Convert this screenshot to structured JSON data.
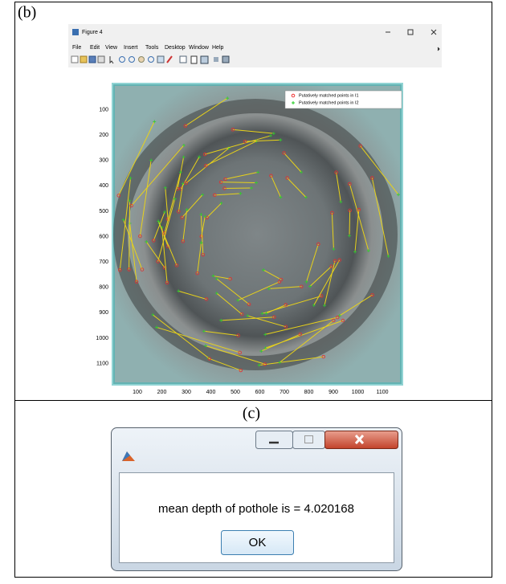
{
  "panel_b": {
    "label": "(b)",
    "window": {
      "title": "Figure 4",
      "menu": [
        "File",
        "Edit",
        "View",
        "Insert",
        "Tools",
        "Desktop",
        "Window",
        "Help"
      ],
      "axes": {
        "xticks": [
          100,
          200,
          300,
          400,
          500,
          600,
          700,
          800,
          900,
          1000,
          1100
        ],
        "yticks": [
          100,
          200,
          300,
          400,
          500,
          600,
          700,
          800,
          900,
          1000,
          1100
        ]
      },
      "legend": [
        "Putatively matched points in I1",
        "Putatively matched points in I2"
      ]
    }
  },
  "panel_c": {
    "label": "(c)",
    "dialog": {
      "message": "mean depth of pothole is = 4.020168",
      "button": "OK"
    }
  }
}
